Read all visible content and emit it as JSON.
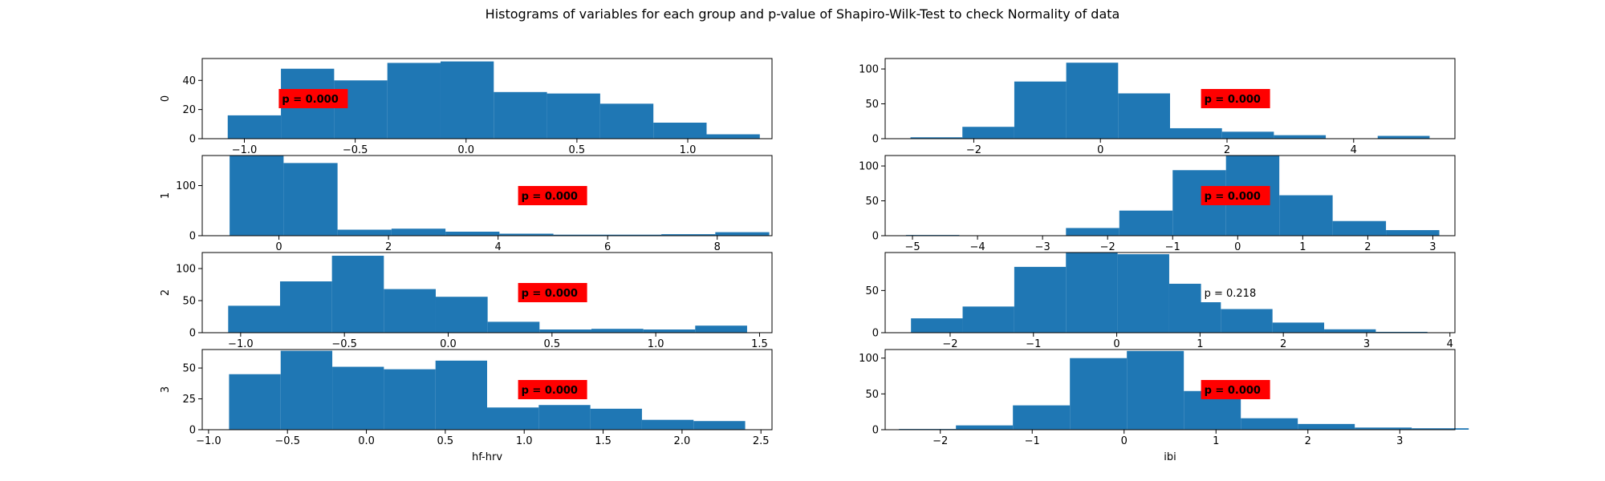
{
  "title": "Histograms of variables for each group and p-value of Shapiro-Wilk-Test to check Normality of data",
  "bar_color": "#1f77b4",
  "significant_box_color": "#ff0000",
  "nonsignificant_box_color": "#ffffff",
  "chart_data": [
    {
      "type": "bar",
      "row": 0,
      "col": 0,
      "ylabel": "0",
      "xlabel": "",
      "xlim": [
        -1.19,
        1.38
      ],
      "ylim": [
        0,
        55
      ],
      "xticks": [
        -1.0,
        -0.5,
        0.0,
        0.5,
        1.0
      ],
      "xtick_labels": [
        "−1.0",
        "−0.5",
        "0.0",
        "0.5",
        "1.0"
      ],
      "yticks": [
        0,
        20,
        40
      ],
      "ytick_labels": [
        "0",
        "20",
        "40"
      ],
      "bin_edges": [
        -1.075,
        -0.835,
        -0.595,
        -0.355,
        -0.115,
        0.125,
        0.365,
        0.605,
        0.845,
        1.085,
        1.325
      ],
      "counts": [
        16,
        48,
        40,
        52,
        53,
        32,
        31,
        24,
        11,
        3
      ],
      "p_value_text": "p = 0.000",
      "significant": true,
      "annotation_x": 0.14
    },
    {
      "type": "bar",
      "row": 0,
      "col": 1,
      "ylabel": "",
      "xlabel": "",
      "xlim": [
        -3.4,
        5.6
      ],
      "ylim": [
        0,
        115
      ],
      "xticks": [
        -2,
        0,
        2,
        4
      ],
      "xtick_labels": [
        "−2",
        "0",
        "2",
        "4"
      ],
      "yticks": [
        0,
        50,
        100
      ],
      "ytick_labels": [
        "0",
        "50",
        "100"
      ],
      "bin_edges": [
        -3.0,
        -2.18,
        -1.36,
        -0.54,
        0.28,
        1.1,
        1.92,
        2.74,
        3.56,
        4.38,
        5.2
      ],
      "counts": [
        2,
        17,
        82,
        109,
        65,
        15,
        10,
        5,
        0,
        4
      ],
      "p_value_text": "p = 0.000",
      "significant": true,
      "annotation_x": 0.56
    },
    {
      "type": "bar",
      "row": 1,
      "col": 0,
      "ylabel": "1",
      "xlabel": "",
      "xlim": [
        -1.4,
        9.0
      ],
      "ylim": [
        0,
        160
      ],
      "xticks": [
        0,
        2,
        4,
        6,
        8
      ],
      "xtick_labels": [
        "0",
        "2",
        "4",
        "6",
        "8"
      ],
      "yticks": [
        0,
        100
      ],
      "ytick_labels": [
        "0",
        "100"
      ],
      "bin_edges": [
        -0.9,
        0.085,
        1.07,
        2.055,
        3.04,
        4.025,
        5.01,
        5.995,
        6.98,
        7.965,
        8.95
      ],
      "counts": [
        160,
        145,
        12,
        14,
        8,
        4,
        2,
        2,
        3,
        7
      ],
      "p_value_text": "p = 0.000",
      "significant": true,
      "annotation_x": 0.56
    },
    {
      "type": "bar",
      "row": 1,
      "col": 1,
      "ylabel": "",
      "xlabel": "",
      "xlim": [
        -5.42,
        3.34
      ],
      "ylim": [
        0,
        115
      ],
      "xticks": [
        -5,
        -4,
        -3,
        -2,
        -1,
        0,
        1,
        2,
        3
      ],
      "xtick_labels": [
        "−5",
        "−4",
        "−3",
        "−2",
        "−1",
        "0",
        "1",
        "2",
        "3"
      ],
      "yticks": [
        0,
        50,
        100
      ],
      "ytick_labels": [
        "0",
        "50",
        "100"
      ],
      "bin_edges": [
        -5.1,
        -4.28,
        -3.46,
        -2.64,
        -1.82,
        -1.0,
        -0.18,
        0.64,
        1.46,
        2.28,
        3.1
      ],
      "counts": [
        1,
        0,
        0,
        11,
        36,
        94,
        115,
        58,
        21,
        8
      ],
      "p_value_text": "p = 0.000",
      "significant": true,
      "annotation_x": 0.56
    },
    {
      "type": "bar",
      "row": 2,
      "col": 0,
      "ylabel": "2",
      "xlabel": "",
      "xlim": [
        -1.185,
        1.56
      ],
      "ylim": [
        0,
        125
      ],
      "xticks": [
        -1.0,
        -0.5,
        0.0,
        0.5,
        1.0,
        1.5
      ],
      "xtick_labels": [
        "−1.0",
        "−0.5",
        "0.0",
        "0.5",
        "1.0",
        "1.5"
      ],
      "yticks": [
        0,
        50,
        100
      ],
      "ytick_labels": [
        "0",
        "50",
        "100"
      ],
      "bin_edges": [
        -1.06,
        -0.81,
        -0.56,
        -0.31,
        -0.06,
        0.19,
        0.44,
        0.69,
        0.94,
        1.19,
        1.44
      ],
      "counts": [
        42,
        80,
        120,
        68,
        56,
        17,
        5,
        6,
        5,
        11
      ],
      "p_value_text": "p = 0.000",
      "significant": true,
      "annotation_x": 0.56
    },
    {
      "type": "bar",
      "row": 2,
      "col": 1,
      "ylabel": "",
      "xlabel": "",
      "xlim": [
        -2.78,
        4.06
      ],
      "ylim": [
        0,
        95
      ],
      "xticks": [
        -2,
        -1,
        0,
        1,
        2,
        3,
        4
      ],
      "xtick_labels": [
        "−2",
        "−1",
        "0",
        "1",
        "2",
        "3",
        "4"
      ],
      "yticks": [
        0,
        50
      ],
      "ytick_labels": [
        "0",
        "50"
      ],
      "bin_edges": [
        -2.47,
        -1.85,
        -1.23,
        -0.61,
        0.01,
        0.63,
        1.25,
        1.87,
        2.49,
        3.11,
        3.73
      ],
      "counts": [
        17,
        31,
        78,
        95,
        93,
        58,
        28,
        12,
        4,
        1
      ],
      "p_value_text": "p = 0.218",
      "significant": false,
      "annotation_x": 0.56
    },
    {
      "type": "bar",
      "row": 3,
      "col": 0,
      "ylabel": "3",
      "xlabel": "hf-hrv",
      "xlim": [
        -1.04,
        2.57
      ],
      "ylim": [
        0,
        65
      ],
      "xticks": [
        -1.0,
        -0.5,
        0.0,
        0.5,
        1.0,
        1.5,
        2.0,
        2.5
      ],
      "xtick_labels": [
        "−1.0",
        "−0.5",
        "0.0",
        "0.5",
        "1.0",
        "1.5",
        "2.0",
        "2.5"
      ],
      "yticks": [
        0,
        25,
        50
      ],
      "ytick_labels": [
        "0",
        "25",
        "50"
      ],
      "bin_edges": [
        -0.87,
        -0.543,
        -0.216,
        0.111,
        0.438,
        0.765,
        1.092,
        1.419,
        1.746,
        2.073,
        2.4
      ],
      "counts": [
        45,
        64,
        51,
        49,
        56,
        18,
        20,
        17,
        8,
        7
      ],
      "p_value_text": "p = 0.000",
      "significant": true,
      "annotation_x": 0.56
    },
    {
      "type": "bar",
      "row": 3,
      "col": 1,
      "ylabel": "",
      "xlabel": "ibi",
      "xlim": [
        -2.6,
        3.6
      ],
      "ylim": [
        0,
        112
      ],
      "xticks": [
        -2,
        -1,
        0,
        1,
        2,
        3
      ],
      "xtick_labels": [
        "−2",
        "−1",
        "0",
        "1",
        "2",
        "3"
      ],
      "yticks": [
        0,
        50,
        100
      ],
      "ytick_labels": [
        "0",
        "50",
        "100"
      ],
      "bin_edges": [
        -2.45,
        -1.83,
        -1.21,
        -0.59,
        0.03,
        0.65,
        1.27,
        1.89,
        2.51,
        3.13,
        3.75
      ],
      "counts": [
        1,
        6,
        34,
        100,
        110,
        54,
        16,
        8,
        3,
        2
      ],
      "p_value_text": "p = 0.000",
      "significant": true,
      "annotation_x": 0.56
    }
  ]
}
